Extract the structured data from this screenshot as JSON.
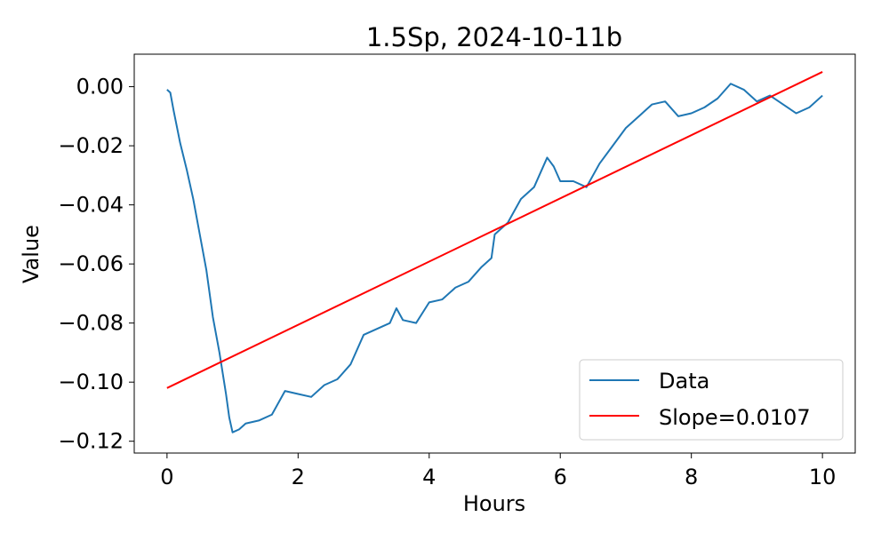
{
  "chart_data": {
    "type": "line",
    "title": "1.5Sp, 2024-10-11b",
    "xlabel": "Hours",
    "ylabel": "Value",
    "xlim": [
      -0.5,
      10.5
    ],
    "ylim": [
      -0.124,
      0.011
    ],
    "xticks": [
      0,
      2,
      4,
      6,
      8,
      10
    ],
    "xtick_labels": [
      "0",
      "2",
      "4",
      "6",
      "8",
      "10"
    ],
    "yticks": [
      0.0,
      -0.02,
      -0.04,
      -0.06,
      -0.08,
      -0.1,
      -0.12
    ],
    "ytick_labels": [
      "0.00",
      "−0.02",
      "−0.04",
      "−0.06",
      "−0.08",
      "−0.10",
      "−0.12"
    ],
    "grid": false,
    "legend_position": "bottom-right",
    "series": [
      {
        "name": "Data",
        "kind": "line",
        "color": "#1f77b4",
        "x": [
          0,
          0.05,
          0.1,
          0.2,
          0.3,
          0.4,
          0.5,
          0.6,
          0.65,
          0.7,
          0.8,
          0.9,
          0.95,
          1.0,
          1.1,
          1.2,
          1.4,
          1.6,
          1.8,
          2.0,
          2.2,
          2.4,
          2.6,
          2.8,
          3.0,
          3.2,
          3.4,
          3.5,
          3.6,
          3.8,
          4.0,
          4.2,
          4.4,
          4.6,
          4.8,
          4.95,
          5.0,
          5.2,
          5.4,
          5.6,
          5.8,
          5.9,
          6.0,
          6.2,
          6.4,
          6.6,
          6.8,
          7.0,
          7.2,
          7.4,
          7.6,
          7.8,
          8.0,
          8.2,
          8.4,
          8.6,
          8.8,
          9.0,
          9.2,
          9.4,
          9.6,
          9.8,
          10.0
        ],
        "y": [
          -0.001,
          -0.002,
          -0.008,
          -0.019,
          -0.028,
          -0.038,
          -0.05,
          -0.062,
          -0.07,
          -0.078,
          -0.09,
          -0.104,
          -0.112,
          -0.117,
          -0.116,
          -0.114,
          -0.113,
          -0.111,
          -0.103,
          -0.104,
          -0.105,
          -0.101,
          -0.099,
          -0.094,
          -0.084,
          -0.082,
          -0.08,
          -0.075,
          -0.079,
          -0.08,
          -0.073,
          -0.072,
          -0.068,
          -0.066,
          -0.061,
          -0.058,
          -0.05,
          -0.046,
          -0.038,
          -0.034,
          -0.024,
          -0.027,
          -0.032,
          -0.032,
          -0.034,
          -0.026,
          -0.02,
          -0.014,
          -0.01,
          -0.006,
          -0.005,
          -0.01,
          -0.009,
          -0.007,
          -0.004,
          0.001,
          -0.001,
          -0.005,
          -0.003,
          -0.006,
          -0.009,
          -0.007,
          -0.003
        ]
      },
      {
        "name": "Slope=0.0107",
        "kind": "line",
        "color": "#ff0000",
        "x": [
          0,
          10
        ],
        "y": [
          -0.102,
          0.005
        ]
      }
    ]
  }
}
